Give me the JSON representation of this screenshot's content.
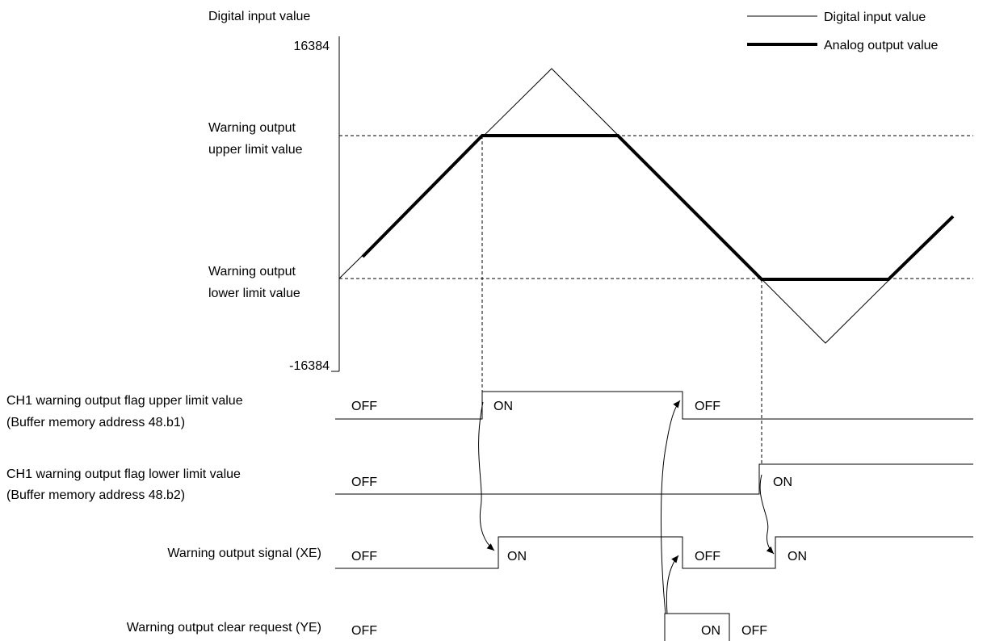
{
  "diagram": {
    "title": "Digital input value",
    "axis": {
      "top": "16384",
      "bottom": "-16384",
      "upper": [
        "Warning output",
        "upper limit value"
      ],
      "lower": [
        "Warning output",
        "lower limit value"
      ]
    },
    "legend": [
      "Digital input value",
      "Analog output value"
    ],
    "signals": [
      {
        "name": [
          "CH1 warning output flag upper limit value",
          "(Buffer memory address 48.b1)"
        ],
        "states": [
          "OFF",
          "ON",
          "OFF"
        ]
      },
      {
        "name": [
          "CH1 warning output flag lower limit value",
          "(Buffer memory address 48.b2)"
        ],
        "states": [
          "OFF",
          "ON"
        ]
      },
      {
        "name": [
          "Warning output signal (XE)"
        ],
        "states": [
          "OFF",
          "ON",
          "OFF",
          "ON"
        ]
      },
      {
        "name": [
          "Warning output clear request (YE)"
        ],
        "states": [
          "OFF",
          "ON",
          "OFF"
        ]
      }
    ]
  }
}
